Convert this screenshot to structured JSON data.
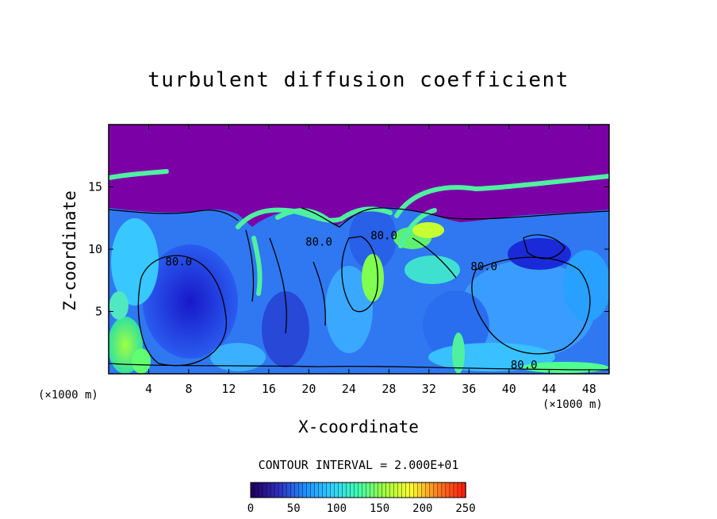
{
  "chart_data": {
    "type": "heatmap",
    "title": "turbulent diffusion coefficient",
    "xlabel": "X-coordinate",
    "ylabel": "Z-coordinate",
    "x_unit": "(×1000 m)",
    "y_unit": "(×1000 m)",
    "xlim": [
      0,
      50
    ],
    "ylim": [
      0,
      20
    ],
    "x_ticks": [
      4,
      8,
      12,
      16,
      20,
      24,
      28,
      32,
      36,
      40,
      44,
      48
    ],
    "y_ticks": [
      5,
      10,
      15
    ],
    "contour_interval": "CONTOUR INTERVAL = 2.000E+01",
    "colorbar": {
      "range": [
        0,
        250
      ],
      "ticks": [
        0,
        50,
        100,
        150,
        200,
        250
      ],
      "colors": [
        "#200060",
        "#3030c0",
        "#2090ff",
        "#30d0ff",
        "#40ffb0",
        "#a0ff40",
        "#ffff30",
        "#ff8020",
        "#ff2010"
      ]
    },
    "background_color": "#7b00a6",
    "contour_labels": [
      {
        "text": "80.0",
        "x": 37.5,
        "z": 8.3
      },
      {
        "text": "80.0",
        "x": 41.5,
        "z": 0.4
      },
      {
        "text": "80.0",
        "x": 7.0,
        "z": 8.7
      },
      {
        "text": "80.0",
        "x": 21.0,
        "z": 10.3
      },
      {
        "text": "80.0",
        "x": 27.5,
        "z": 10.8
      }
    ]
  }
}
